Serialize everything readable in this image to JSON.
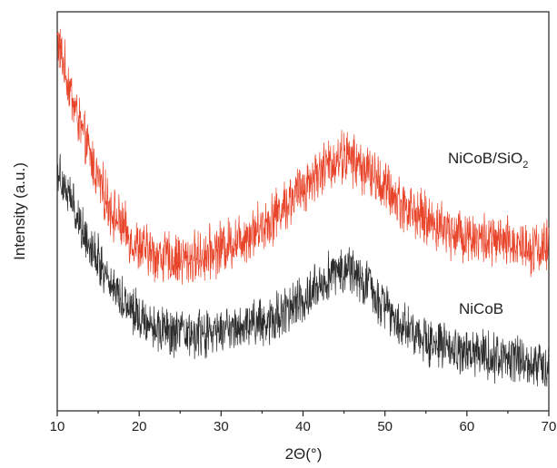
{
  "chart_data": {
    "type": "line",
    "xlabel": "2Θ(°)",
    "ylabel": "Intensity (a.u.)",
    "xlim": [
      10,
      70
    ],
    "x_ticks": [
      "10",
      "20",
      "30",
      "40",
      "50",
      "60",
      "70"
    ],
    "y_ticks_shown": false,
    "grid": false,
    "legend": "inline-labels",
    "series": [
      {
        "name": "NiCoB/SiO2",
        "color": "#e8442a",
        "noise": 0.055,
        "profile": [
          [
            10,
            0.93
          ],
          [
            11,
            0.85
          ],
          [
            12,
            0.77
          ],
          [
            13,
            0.7
          ],
          [
            14,
            0.64
          ],
          [
            15,
            0.58
          ],
          [
            16,
            0.53
          ],
          [
            17,
            0.49
          ],
          [
            18,
            0.46
          ],
          [
            19,
            0.43
          ],
          [
            20,
            0.41
          ],
          [
            22,
            0.39
          ],
          [
            24,
            0.38
          ],
          [
            26,
            0.38
          ],
          [
            28,
            0.39
          ],
          [
            30,
            0.41
          ],
          [
            32,
            0.43
          ],
          [
            34,
            0.45
          ],
          [
            36,
            0.48
          ],
          [
            38,
            0.52
          ],
          [
            40,
            0.56
          ],
          [
            42,
            0.6
          ],
          [
            44,
            0.63
          ],
          [
            45,
            0.64
          ],
          [
            46,
            0.63
          ],
          [
            48,
            0.6
          ],
          [
            50,
            0.56
          ],
          [
            52,
            0.52
          ],
          [
            54,
            0.49
          ],
          [
            56,
            0.47
          ],
          [
            58,
            0.45
          ],
          [
            60,
            0.44
          ],
          [
            62,
            0.43
          ],
          [
            64,
            0.42
          ],
          [
            66,
            0.42
          ],
          [
            68,
            0.41
          ],
          [
            70,
            0.41
          ]
        ]
      },
      {
        "name": "NiCoB",
        "color": "#2b2b2b",
        "noise": 0.05,
        "profile": [
          [
            10,
            0.61
          ],
          [
            11,
            0.56
          ],
          [
            12,
            0.51
          ],
          [
            13,
            0.46
          ],
          [
            14,
            0.42
          ],
          [
            15,
            0.38
          ],
          [
            16,
            0.34
          ],
          [
            17,
            0.31
          ],
          [
            18,
            0.28
          ],
          [
            19,
            0.26
          ],
          [
            20,
            0.24
          ],
          [
            22,
            0.21
          ],
          [
            24,
            0.19
          ],
          [
            26,
            0.19
          ],
          [
            28,
            0.19
          ],
          [
            30,
            0.2
          ],
          [
            32,
            0.21
          ],
          [
            34,
            0.22
          ],
          [
            36,
            0.23
          ],
          [
            38,
            0.25
          ],
          [
            40,
            0.28
          ],
          [
            42,
            0.32
          ],
          [
            44,
            0.35
          ],
          [
            45,
            0.36
          ],
          [
            46,
            0.35
          ],
          [
            48,
            0.31
          ],
          [
            50,
            0.26
          ],
          [
            52,
            0.22
          ],
          [
            54,
            0.19
          ],
          [
            56,
            0.17
          ],
          [
            58,
            0.15
          ],
          [
            60,
            0.14
          ],
          [
            62,
            0.14
          ],
          [
            64,
            0.13
          ],
          [
            66,
            0.13
          ],
          [
            68,
            0.12
          ],
          [
            70,
            0.12
          ]
        ]
      }
    ],
    "labels": {
      "nicob_sio2_main": "NiCoB/SiO",
      "nicob_sio2_sub": "2",
      "nicob": "NiCoB"
    }
  }
}
